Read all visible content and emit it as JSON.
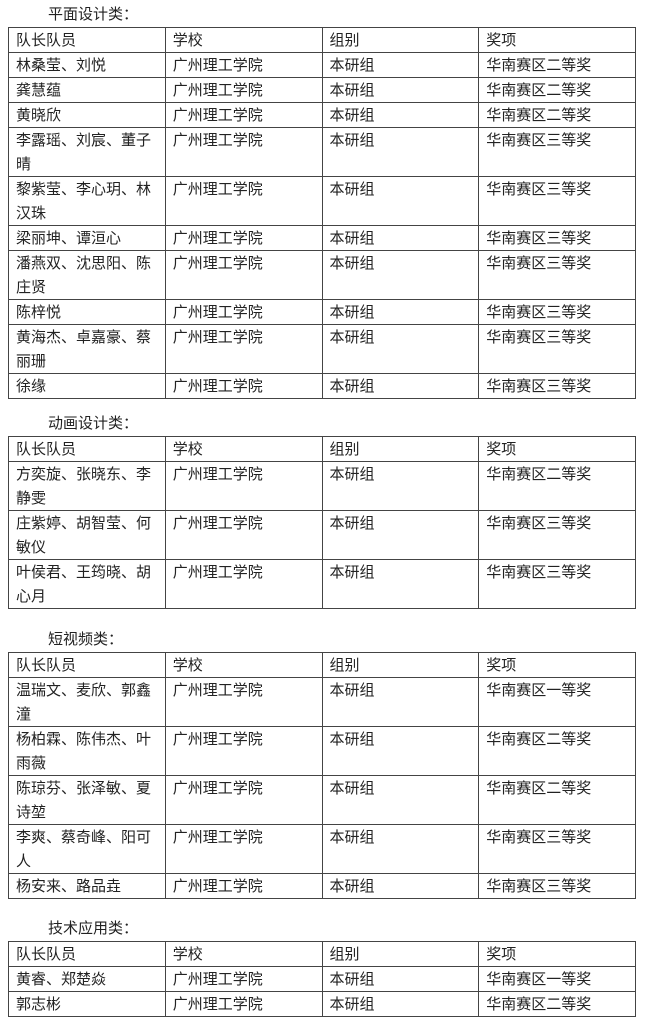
{
  "sections": [
    {
      "title": "平面设计类：",
      "header": [
        "队长队员",
        "学校",
        "组别",
        "奖项"
      ],
      "rows": [
        [
          "林桑莹、刘悦",
          "广州理工学院",
          "本研组",
          "华南赛区二等奖"
        ],
        [
          "龚慧蕴",
          "广州理工学院",
          "本研组",
          "华南赛区二等奖"
        ],
        [
          "黄晓欣",
          "广州理工学院",
          "本研组",
          "华南赛区二等奖"
        ],
        [
          "李露瑶、刘宸、董子晴",
          "广州理工学院",
          "本研组",
          "华南赛区三等奖"
        ],
        [
          "黎紫莹、李心玥、林汉珠",
          "广州理工学院",
          "本研组",
          "华南赛区三等奖"
        ],
        [
          "梁丽坤、谭洹心",
          "广州理工学院",
          "本研组",
          "华南赛区三等奖"
        ],
        [
          "潘燕双、沈思阳、陈庄贤",
          "广州理工学院",
          "本研组",
          "华南赛区三等奖"
        ],
        [
          "陈梓悦",
          "广州理工学院",
          "本研组",
          "华南赛区三等奖"
        ],
        [
          "黄海杰、卓嘉豪、蔡丽珊",
          "广州理工学院",
          "本研组",
          "华南赛区三等奖"
        ],
        [
          "徐缘",
          "广州理工学院",
          "本研组",
          "华南赛区三等奖"
        ]
      ]
    },
    {
      "title": "动画设计类：",
      "header": [
        "队长队员",
        "学校",
        "组别",
        "奖项"
      ],
      "rows": [
        [
          "方奕旋、张晓东、李静雯",
          "广州理工学院",
          "本研组",
          "华南赛区二等奖"
        ],
        [
          "庄紫婷、胡智莹、何敏仪",
          "广州理工学院",
          "本研组",
          "华南赛区三等奖"
        ],
        [
          "叶侯君、王筠晓、胡心月",
          "广州理工学院",
          "本研组",
          "华南赛区三等奖"
        ]
      ]
    },
    {
      "title": "短视频类：",
      "header": [
        "队长队员",
        "学校",
        "组别",
        "奖项"
      ],
      "rows": [
        [
          "温瑞文、麦欣、郭鑫潼",
          "广州理工学院",
          "本研组",
          "华南赛区一等奖"
        ],
        [
          "杨柏霖、陈伟杰、叶雨薇",
          "广州理工学院",
          "本研组",
          "华南赛区二等奖"
        ],
        [
          "陈琼芬、张泽敏、夏诗堃",
          "广州理工学院",
          "本研组",
          "华南赛区二等奖"
        ],
        [
          "李爽、蔡奇峰、阳可人",
          "广州理工学院",
          "本研组",
          "华南赛区三等奖"
        ],
        [
          "杨安来、路品垚",
          "广州理工学院",
          "本研组",
          "华南赛区三等奖"
        ]
      ]
    },
    {
      "title": "技术应用类：",
      "header": [
        "队长队员",
        "学校",
        "组别",
        "奖项"
      ],
      "rows": [
        [
          "黄睿、郑楚焱",
          "广州理工学院",
          "本研组",
          "华南赛区一等奖"
        ],
        [
          "郭志彬",
          "广州理工学院",
          "本研组",
          "华南赛区二等奖"
        ]
      ]
    }
  ]
}
